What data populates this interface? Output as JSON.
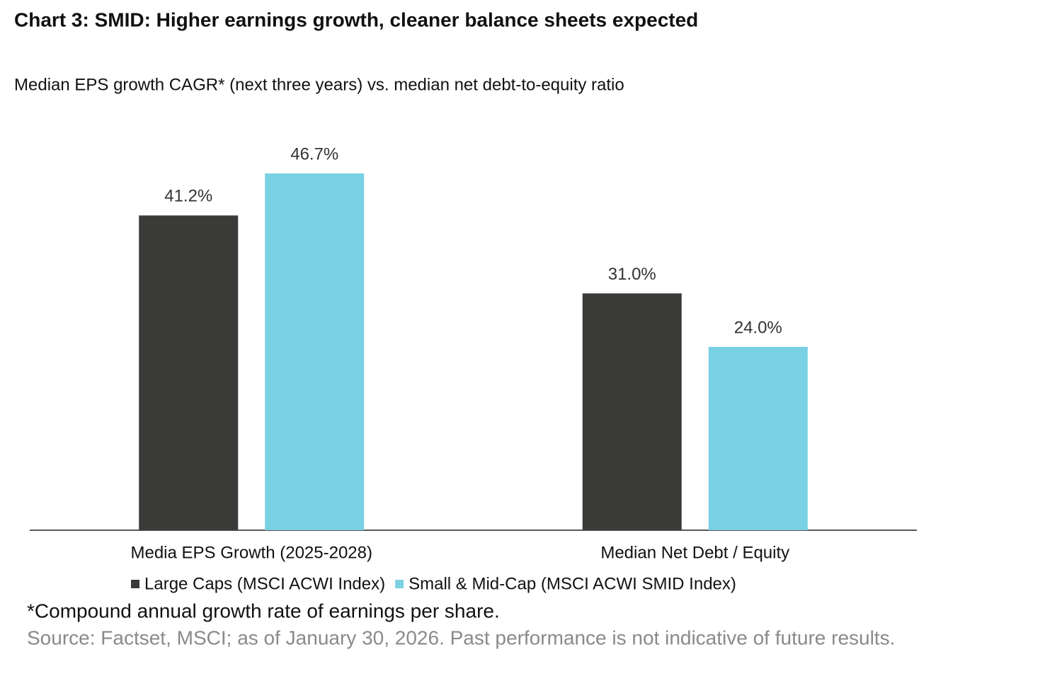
{
  "chart_data": {
    "type": "bar",
    "title": "Chart 3: SMID: Higher earnings growth, cleaner balance sheets expected",
    "subtitle": "Median EPS growth CAGR* (next three years) vs. median net debt-to-equity ratio",
    "categories": [
      "Media EPS Growth (2025-2028)",
      "Median Net Debt / Equity"
    ],
    "series": [
      {
        "name": "Large Caps (MSCI ACWI Index)",
        "color": "#3a3b39",
        "values": [
          41.2,
          31.0
        ],
        "value_labels": [
          "41.2%",
          "31.0%"
        ]
      },
      {
        "name": "Small & Mid-Cap (MSCI ACWI SMID Index)",
        "color": "#79d1e3",
        "values": [
          46.7,
          24.0
        ],
        "value_labels": [
          "46.7%",
          "24.0%"
        ]
      }
    ],
    "legend": "bottom",
    "footnote": "*Compound annual growth rate of earnings per share.",
    "source": "Source: Factset, MSCI; as of January 30, 2026. Past performance is not indicative of future results."
  }
}
